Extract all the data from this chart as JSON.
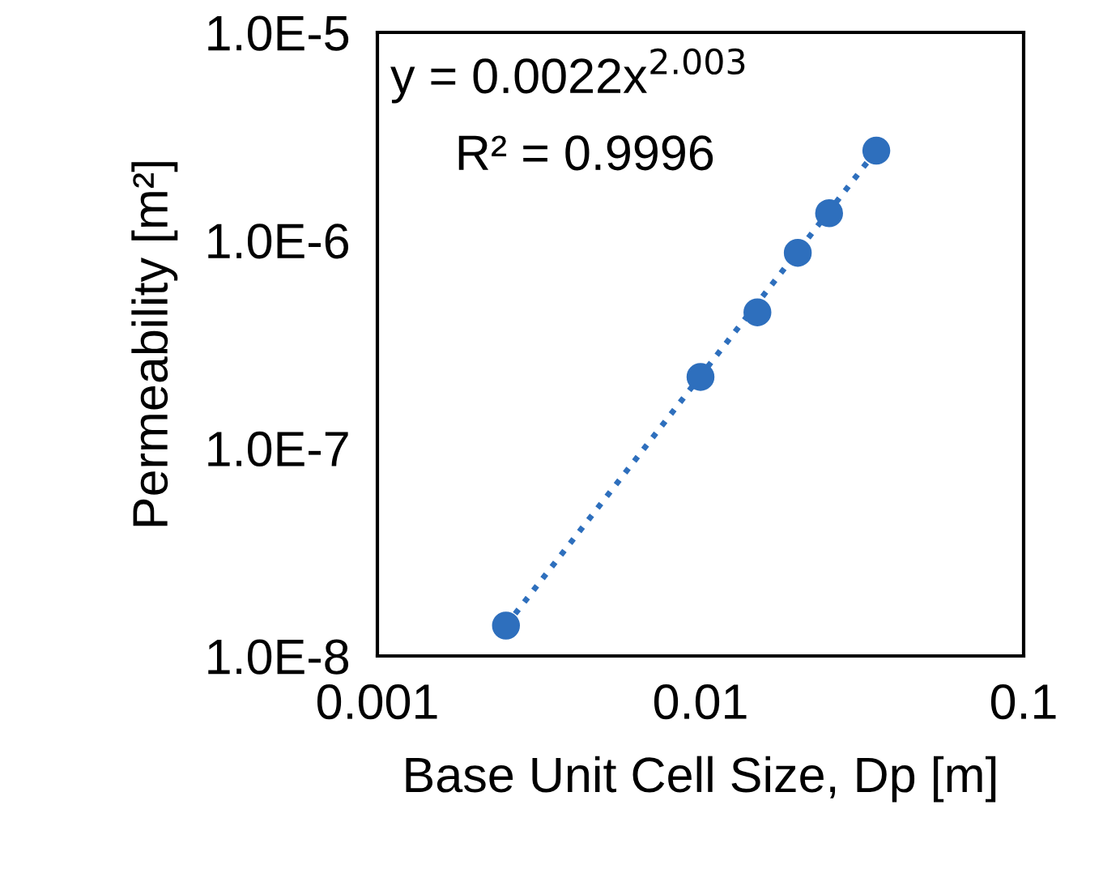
{
  "chart_data": {
    "type": "scatter",
    "xlabel": "Base Unit Cell Size, Dp [m]",
    "ylabel": "Permeability [m²]",
    "log": "xy",
    "grid": false,
    "xlim": [
      0.001,
      0.1
    ],
    "xticks": [
      0.001,
      0.01,
      0.1
    ],
    "ylim": [
      1e-08,
      1e-05
    ],
    "yticks": [
      {
        "value": 1e-08,
        "label": "1.0E-8"
      },
      {
        "value": 1e-07,
        "label": "1.0E-7"
      },
      {
        "value": 1e-06,
        "label": "1.0E-6"
      },
      {
        "value": 1e-05,
        "label": "1.0E-5"
      }
    ],
    "series": [
      {
        "color": "#2e6fbd",
        "marker": "circle",
        "x": [
          0.0025,
          0.01,
          0.015,
          0.02,
          0.025,
          0.035
        ],
        "values": [
          1.4e-08,
          2.2e-07,
          4.5e-07,
          8.7e-07,
          1.35e-06,
          2.7e-06
        ]
      },
      {
        "type": "line",
        "color": "#2e6fbd",
        "line_style": "dotted",
        "marker": "none",
        "x": [
          0.0025,
          0.035
        ],
        "values": [
          1.4e-08,
          2.7e-06
        ]
      }
    ],
    "annotations": [
      "y = 0.0022x$^{2.003}$",
      "R² = 0.9996"
    ]
  }
}
